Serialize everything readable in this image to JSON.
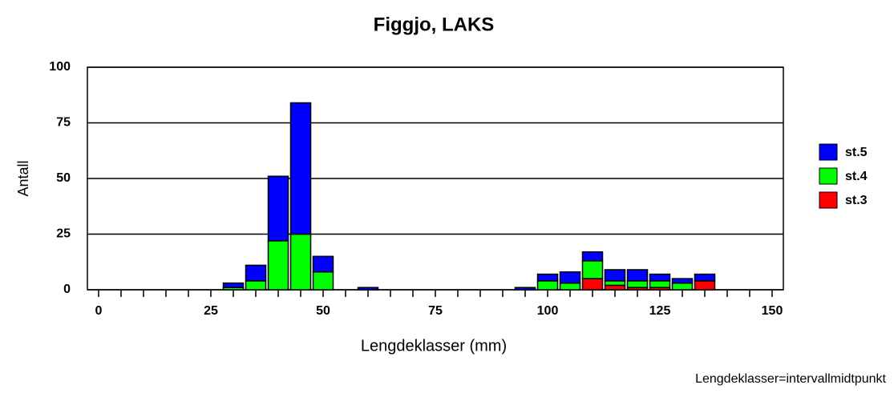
{
  "chart_data": {
    "type": "histogram",
    "title": "Figgjo, LAKS",
    "x_label": "Lengdeklasser (mm)",
    "y_label": "Antall",
    "footnote": "Lengdeklasser=intervallmidtpunkt",
    "bins": [
      -2.5,
      2.5,
      7.5,
      12.5,
      17.5,
      22.5,
      27.5,
      32.5,
      37.5,
      42.5,
      47.5,
      52.5,
      57.5,
      62.5,
      67.5,
      72.5,
      77.5,
      82.5,
      87.5,
      92.5,
      97.5,
      102.5,
      107.5,
      112.5,
      117.5,
      122.5,
      127.5,
      132.5,
      137.5,
      142.5,
      147.5,
      152.5
    ],
    "series": [
      {
        "name": "st.3",
        "color": "#ff0000",
        "values": [
          0,
          0,
          0,
          0,
          0,
          0,
          0,
          0,
          0,
          0,
          0,
          0,
          0,
          0,
          0,
          0,
          0,
          0,
          0,
          0,
          0,
          0,
          5,
          2,
          1,
          1,
          0,
          4,
          0,
          0,
          0
        ]
      },
      {
        "name": "st.4",
        "color": "#00ff00",
        "values": [
          0,
          0,
          0,
          0,
          0,
          0,
          1,
          4,
          22,
          25,
          8,
          0,
          0,
          0,
          0,
          0,
          0,
          0,
          0,
          0,
          4,
          3,
          8,
          2,
          3,
          3,
          3,
          0,
          0,
          0,
          0
        ]
      },
      {
        "name": "st.5",
        "color": "#0000ff",
        "values": [
          0,
          0,
          0,
          0,
          0,
          0,
          2,
          7,
          29,
          59,
          7,
          0,
          1,
          0,
          0,
          0,
          0,
          0,
          0,
          1,
          3,
          5,
          4,
          5,
          5,
          3,
          2,
          3,
          0,
          0,
          0
        ]
      }
    ],
    "xlim": [
      -2.5,
      152.5
    ],
    "xticks": [
      0,
      25,
      50,
      75,
      100,
      125,
      150
    ],
    "xminorticks": [
      5,
      10,
      15,
      20,
      30,
      35,
      40,
      45,
      55,
      60,
      65,
      70,
      80,
      85,
      90,
      95,
      105,
      110,
      115,
      120,
      130,
      135,
      140,
      145
    ],
    "ylim": [
      0,
      100
    ],
    "yticks": [
      0,
      25,
      50,
      75,
      100
    ],
    "grid": true,
    "legend": "right"
  }
}
